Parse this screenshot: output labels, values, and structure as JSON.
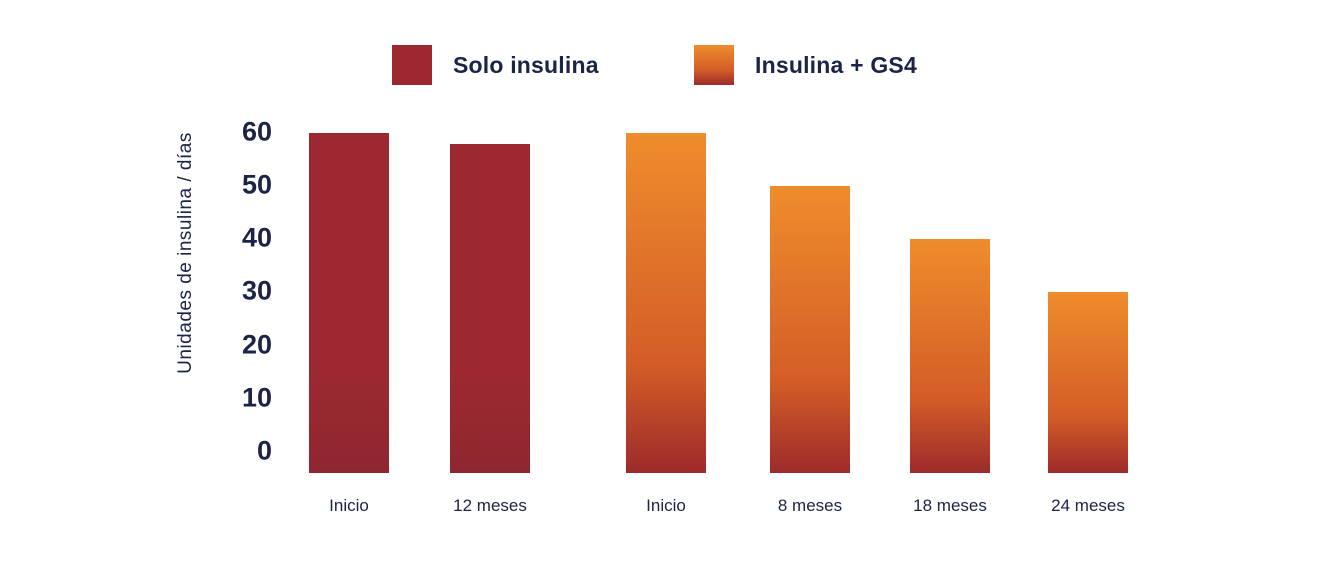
{
  "chart_data": {
    "type": "bar",
    "title": "",
    "xlabel": "",
    "ylabel": "Unidades de insulina / días",
    "ylim": [
      0,
      60
    ],
    "yticks": [
      60,
      50,
      40,
      30,
      20,
      10,
      0
    ],
    "grid": false,
    "axis_lines": false,
    "legend_position": "top",
    "background_color": "#ffffff",
    "text_color": "#1b2346",
    "series": [
      {
        "name": "Solo insulina",
        "color": "#9c2931",
        "color_bottom": "#8e2630",
        "categories": [
          "Inicio",
          "12 meses"
        ],
        "values": [
          60,
          58
        ]
      },
      {
        "name": "Insulina + GS4",
        "color_top": "#ee8d2c",
        "color_mid": "#d45d27",
        "color_bottom": "#9c2b2b",
        "categories": [
          "Inicio",
          "8 meses",
          "18 meses",
          "24 meses"
        ],
        "values": [
          60,
          50,
          40,
          30
        ]
      }
    ]
  }
}
